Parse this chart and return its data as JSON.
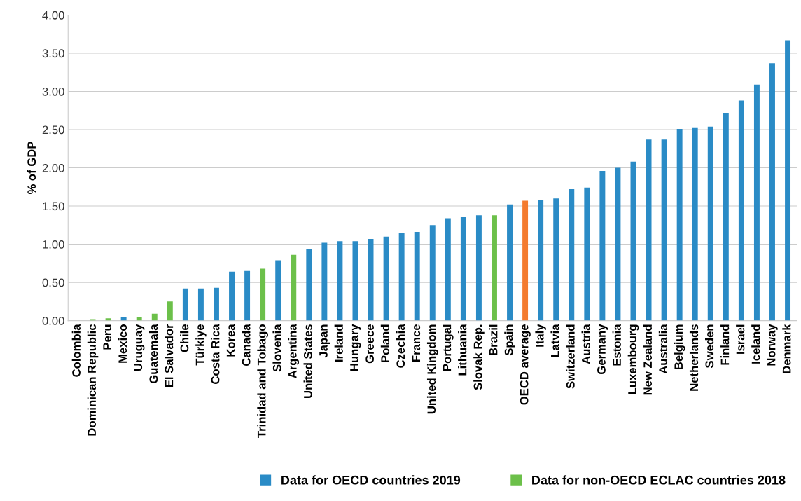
{
  "chart_data": {
    "type": "bar",
    "ylabel": "% of GDP",
    "categories": [
      "Colombia",
      "Dominican Republic",
      "Peru",
      "Mexico",
      "Uruguay",
      "Guatemala",
      "El Salvador",
      "Chile",
      "Türkiye",
      "Costa Rica",
      "Korea",
      "Canada",
      "Trinidad and Tobago",
      "Slovenia",
      "Argentina",
      "United States",
      "Japan",
      "Ireland",
      "Hungary",
      "Greece",
      "Poland",
      "Czechia",
      "France",
      "United Kingdom",
      "Portugal",
      "Lithuania",
      "Slovak Rep.",
      "Brazil",
      "Spain",
      "OECD average",
      "Italy",
      "Latvia",
      "Switzerland",
      "Austria",
      "Germany",
      "Estonia",
      "Luxembourg",
      "New Zealand",
      "Australia",
      "Belgium",
      "Netherlands",
      "Sweden",
      "Finland",
      "Israel",
      "Iceland",
      "Norway",
      "Denmark"
    ],
    "series": [
      {
        "name": "Data for OECD countries 2019",
        "color": "#2a8bc6",
        "values": [
          0.0,
          null,
          null,
          0.05,
          null,
          null,
          null,
          0.42,
          0.42,
          0.43,
          0.64,
          0.65,
          null,
          0.79,
          null,
          0.94,
          1.02,
          1.04,
          1.04,
          1.07,
          1.1,
          1.15,
          1.16,
          1.25,
          1.34,
          1.36,
          1.38,
          null,
          1.52,
          null,
          1.58,
          1.6,
          1.72,
          1.74,
          1.96,
          2.0,
          2.08,
          2.37,
          2.37,
          2.51,
          2.53,
          2.54,
          2.72,
          2.88,
          3.09,
          3.37,
          3.67
        ]
      },
      {
        "name": "Data for non-OECD ECLAC countries 2018",
        "color": "#6cc04a",
        "values": [
          null,
          0.02,
          0.03,
          null,
          0.05,
          0.09,
          0.25,
          null,
          null,
          null,
          null,
          null,
          0.68,
          null,
          0.86,
          null,
          null,
          null,
          null,
          null,
          null,
          null,
          null,
          null,
          null,
          null,
          null,
          1.38,
          null,
          null,
          null,
          null,
          null,
          null,
          null,
          null,
          null,
          null,
          null,
          null,
          null,
          null,
          null,
          null,
          null,
          null,
          null
        ]
      },
      {
        "color": "#f47b2f",
        "values": [
          null,
          null,
          null,
          null,
          null,
          null,
          null,
          null,
          null,
          null,
          null,
          null,
          null,
          null,
          null,
          null,
          null,
          null,
          null,
          null,
          null,
          null,
          null,
          null,
          null,
          null,
          null,
          null,
          null,
          1.57,
          null,
          null,
          null,
          null,
          null,
          null,
          null,
          null,
          null,
          null,
          null,
          null,
          null,
          null,
          null,
          null,
          null
        ]
      }
    ],
    "ylim": [
      0,
      4
    ],
    "yticks": [
      {
        "value": 0,
        "label": "0.00"
      },
      {
        "value": 0.5,
        "label": "0.50"
      },
      {
        "value": 1,
        "label": "1.00"
      },
      {
        "value": 1.5,
        "label": "1.50"
      },
      {
        "value": 2,
        "label": "2.00"
      },
      {
        "value": 2.5,
        "label": "2.50"
      },
      {
        "value": 3,
        "label": "3.00"
      },
      {
        "value": 3.5,
        "label": "3.50"
      },
      {
        "value": 4,
        "label": "4.00"
      }
    ],
    "grid": "y",
    "legend": "bottom right"
  }
}
